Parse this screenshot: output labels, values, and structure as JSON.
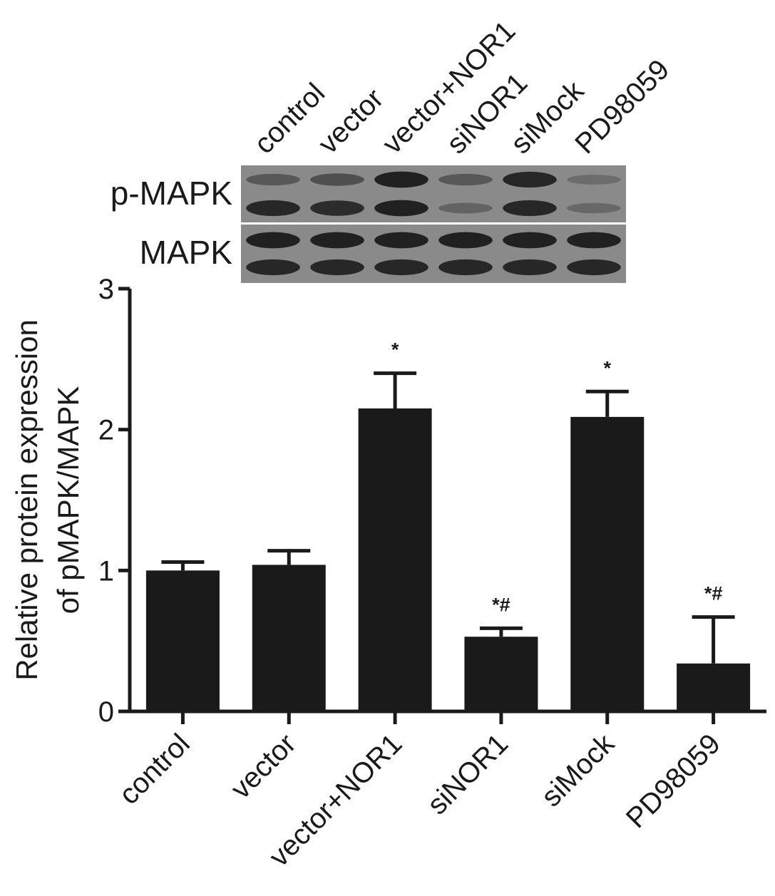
{
  "blot": {
    "lane_labels": [
      "control",
      "vector",
      "vector+NOR1",
      "siNOR1",
      "siMock",
      "PD98059"
    ],
    "rows": [
      {
        "label": "p-MAPK",
        "upper_band": [
          0.35,
          0.45,
          0.9,
          0.35,
          0.85,
          0.15
        ],
        "lower_band": [
          0.85,
          0.8,
          0.9,
          0.25,
          0.85,
          0.2
        ]
      },
      {
        "label": "MAPK",
        "upper_band": [
          0.9,
          0.9,
          0.9,
          0.9,
          0.9,
          0.9
        ],
        "lower_band": [
          0.85,
          0.85,
          0.85,
          0.85,
          0.85,
          0.85
        ]
      }
    ],
    "colors": {
      "background": "#8a8a8a",
      "band": "#141414",
      "divider": "#ffffff"
    }
  },
  "chart_data": {
    "type": "bar",
    "categories": [
      "control",
      "vector",
      "vector+NOR1",
      "siNOR1",
      "siMock",
      "PD98059"
    ],
    "values": [
      1.0,
      1.04,
      2.15,
      0.53,
      2.09,
      0.34
    ],
    "errors": [
      0.06,
      0.1,
      0.25,
      0.06,
      0.18,
      0.33
    ],
    "annotations": [
      "",
      "",
      "*",
      "*#",
      "*",
      "*#"
    ],
    "title": "",
    "xlabel": "",
    "ylabel_lines": [
      "Relative protein expression",
      "of pMAPK/MAPK"
    ],
    "ylim": [
      0,
      3
    ],
    "yticks": [
      0,
      1,
      2,
      3
    ],
    "grid": false,
    "legend": "none",
    "colors": {
      "bar": "#1a1a1a",
      "axis": "#1a1a1a"
    }
  }
}
